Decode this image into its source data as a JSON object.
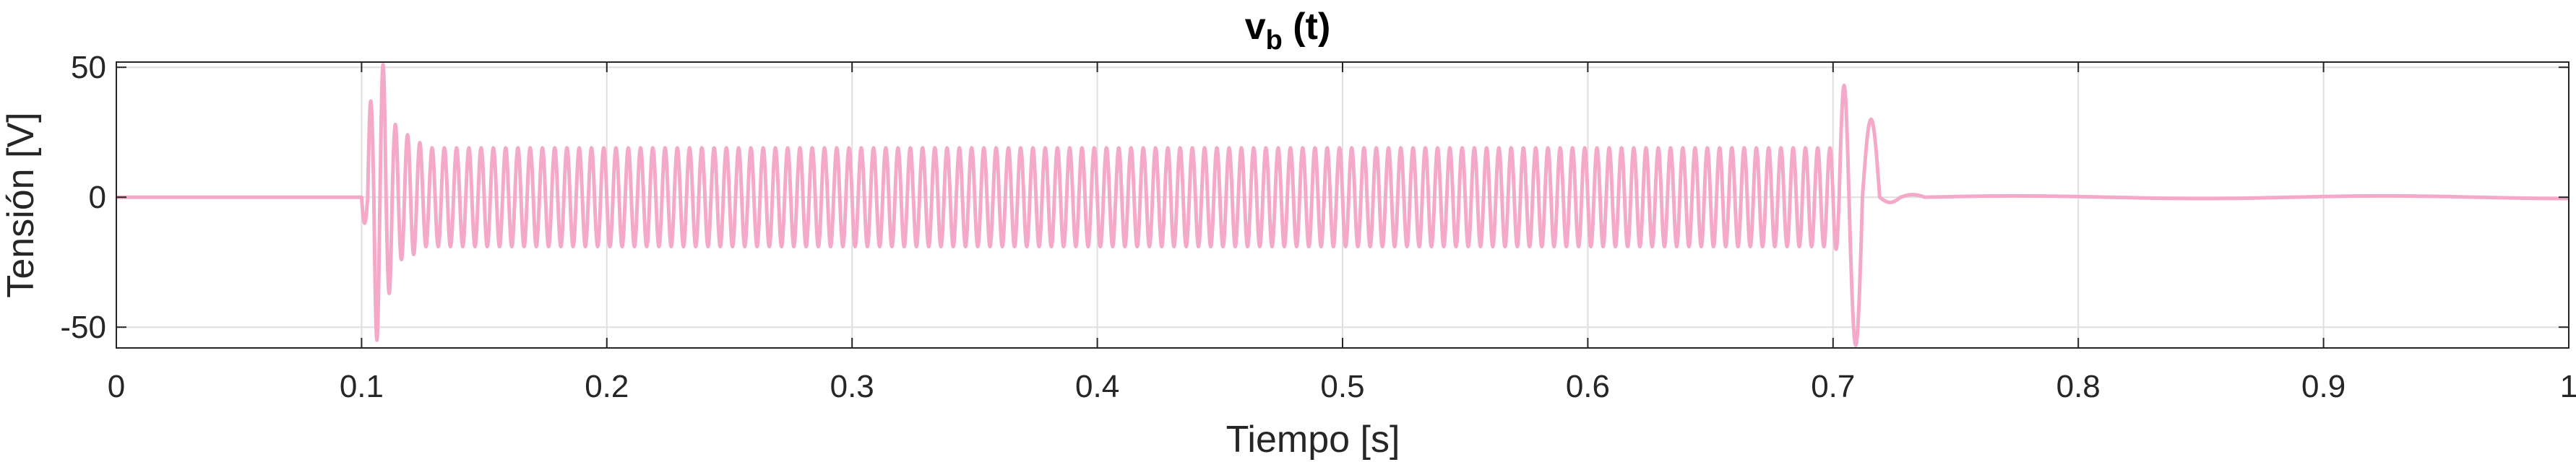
{
  "chart_data": {
    "type": "line",
    "title": {
      "main": "v",
      "subscript": "b",
      "suffix": " (t)"
    },
    "xlabel": "Tiempo [s]",
    "ylabel": "Tensión [V]",
    "xlim": [
      0,
      1
    ],
    "ylim": [
      -58,
      52
    ],
    "xticks": [
      0,
      0.1,
      0.2,
      0.3,
      0.4,
      0.5,
      0.6,
      0.7,
      0.8,
      0.9,
      1
    ],
    "xtick_labels": [
      "0",
      "0.1",
      "0.2",
      "0.3",
      "0.4",
      "0.5",
      "0.6",
      "0.7",
      "0.8",
      "0.9",
      "1"
    ],
    "yticks": [
      -50,
      0,
      50
    ],
    "ytick_labels": [
      "-50",
      "0",
      "50"
    ],
    "grid": true,
    "series": [
      {
        "color": "#f5a9c8",
        "frequency_hz": 200,
        "segments": [
          {
            "t_start": 0.0,
            "t_end": 0.1,
            "shape": "zero"
          },
          {
            "t_start": 0.1,
            "t_end": 0.7,
            "shape": "oscillation",
            "steady_amplitude": 19,
            "initial_peaks": [
              -10,
              37,
              -55,
              51,
              -37,
              28,
              -24,
              24,
              -22,
              21
            ]
          },
          {
            "t_start": 0.7,
            "t_end": 1.0,
            "shape": "decay",
            "initial_peaks": [
              -20,
              43,
              -57,
              30,
              -2,
              1
            ]
          }
        ]
      }
    ]
  }
}
